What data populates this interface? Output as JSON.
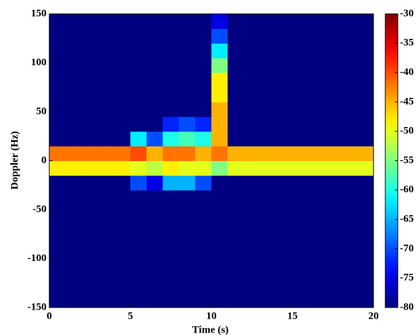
{
  "chart_data": {
    "type": "heatmap",
    "xlabel": "Time (s)",
    "ylabel": "Doppler (Hz)",
    "xlim": [
      0,
      20
    ],
    "ylim": [
      -150,
      150
    ],
    "xticks": [
      0,
      5,
      10,
      15,
      20
    ],
    "yticks": [
      -150,
      -100,
      -50,
      0,
      50,
      100,
      150
    ],
    "clim": [
      -80,
      -30
    ],
    "cticks": [
      -30,
      -35,
      -40,
      -45,
      -50,
      -55,
      -60,
      -65,
      -70,
      -75,
      -80
    ],
    "colormap": "jet",
    "xbins": [
      0,
      1,
      2,
      3,
      4,
      5,
      6,
      7,
      8,
      9,
      10,
      11,
      12,
      13,
      14,
      15,
      16,
      17,
      18,
      19,
      20
    ],
    "ybins": [
      -150,
      -135,
      -120,
      -105,
      -90,
      -75,
      -60,
      -45,
      -30,
      -15,
      0,
      15,
      30,
      45,
      60,
      75,
      90,
      105,
      120,
      135,
      150
    ],
    "z": [
      [
        -80,
        -80,
        -80,
        -80,
        -80,
        -80,
        -80,
        -80,
        -80,
        -80,
        -80,
        -80,
        -80,
        -80,
        -80,
        -80,
        -80,
        -80,
        -80,
        -80
      ],
      [
        -80,
        -80,
        -80,
        -80,
        -80,
        -80,
        -80,
        -80,
        -80,
        -80,
        -80,
        -80,
        -80,
        -80,
        -80,
        -80,
        -80,
        -80,
        -80,
        -80
      ],
      [
        -80,
        -80,
        -80,
        -80,
        -80,
        -80,
        -80,
        -80,
        -80,
        -80,
        -80,
        -80,
        -80,
        -80,
        -80,
        -80,
        -80,
        -80,
        -80,
        -80
      ],
      [
        -80,
        -80,
        -80,
        -80,
        -80,
        -80,
        -80,
        -80,
        -80,
        -80,
        -80,
        -80,
        -80,
        -80,
        -80,
        -80,
        -80,
        -80,
        -80,
        -80
      ],
      [
        -80,
        -80,
        -80,
        -80,
        -80,
        -80,
        -80,
        -80,
        -80,
        -80,
        -80,
        -80,
        -80,
        -80,
        -80,
        -80,
        -80,
        -80,
        -80,
        -80
      ],
      [
        -80,
        -80,
        -80,
        -80,
        -80,
        -80,
        -80,
        -80,
        -80,
        -80,
        -80,
        -80,
        -80,
        -80,
        -80,
        -80,
        -80,
        -80,
        -80,
        -80
      ],
      [
        -80,
        -80,
        -80,
        -80,
        -80,
        -80,
        -80,
        -80,
        -80,
        -80,
        -80,
        -80,
        -80,
        -80,
        -80,
        -80,
        -80,
        -80,
        -80,
        -80
      ],
      [
        -80,
        -80,
        -80,
        -80,
        -80,
        -80,
        -80,
        -80,
        -80,
        -80,
        -80,
        -80,
        -80,
        -80,
        -80,
        -80,
        -80,
        -80,
        -80,
        -80
      ],
      [
        -80,
        -80,
        -80,
        -80,
        -80,
        -70,
        -75,
        -65,
        -65,
        -70,
        -80,
        -80,
        -80,
        -80,
        -80,
        -80,
        -80,
        -80,
        -80,
        -80
      ],
      [
        -48,
        -48,
        -48,
        -48,
        -48,
        -50,
        -52,
        -48,
        -50,
        -50,
        -55,
        -50,
        -50,
        -50,
        -50,
        -50,
        -50,
        -50,
        -50,
        -50
      ],
      [
        -42,
        -42,
        -42,
        -42,
        -42,
        -40,
        -45,
        -42,
        -42,
        -45,
        -42,
        -45,
        -45,
        -45,
        -45,
        -45,
        -45,
        -45,
        -45,
        -45
      ],
      [
        -80,
        -80,
        -80,
        -80,
        -80,
        -62,
        -70,
        -60,
        -58,
        -60,
        -45,
        -80,
        -80,
        -80,
        -80,
        -80,
        -80,
        -80,
        -80,
        -80
      ],
      [
        -80,
        -80,
        -80,
        -80,
        -80,
        -80,
        -80,
        -72,
        -70,
        -72,
        -45,
        -80,
        -80,
        -80,
        -80,
        -80,
        -80,
        -80,
        -80,
        -80
      ],
      [
        -80,
        -80,
        -80,
        -80,
        -80,
        -80,
        -80,
        -80,
        -80,
        -80,
        -45,
        -80,
        -80,
        -80,
        -80,
        -80,
        -80,
        -80,
        -80,
        -80
      ],
      [
        -80,
        -80,
        -80,
        -80,
        -80,
        -80,
        -80,
        -80,
        -80,
        -80,
        -48,
        -80,
        -80,
        -80,
        -80,
        -80,
        -80,
        -80,
        -80,
        -80
      ],
      [
        -80,
        -80,
        -80,
        -80,
        -80,
        -80,
        -80,
        -80,
        -80,
        -80,
        -48,
        -80,
        -80,
        -80,
        -80,
        -80,
        -80,
        -80,
        -80,
        -80
      ],
      [
        -80,
        -80,
        -80,
        -80,
        -80,
        -80,
        -80,
        -80,
        -80,
        -80,
        -55,
        -80,
        -80,
        -80,
        -80,
        -80,
        -80,
        -80,
        -80,
        -80
      ],
      [
        -80,
        -80,
        -80,
        -80,
        -80,
        -80,
        -80,
        -80,
        -80,
        -80,
        -62,
        -80,
        -80,
        -80,
        -80,
        -80,
        -80,
        -80,
        -80,
        -80
      ],
      [
        -80,
        -80,
        -80,
        -80,
        -80,
        -80,
        -80,
        -80,
        -80,
        -80,
        -70,
        -80,
        -80,
        -80,
        -80,
        -80,
        -80,
        -80,
        -80,
        -80
      ],
      [
        -80,
        -80,
        -80,
        -80,
        -80,
        -80,
        -80,
        -80,
        -80,
        -80,
        -75,
        -80,
        -80,
        -80,
        -80,
        -80,
        -80,
        -80,
        -80,
        -80
      ]
    ]
  }
}
